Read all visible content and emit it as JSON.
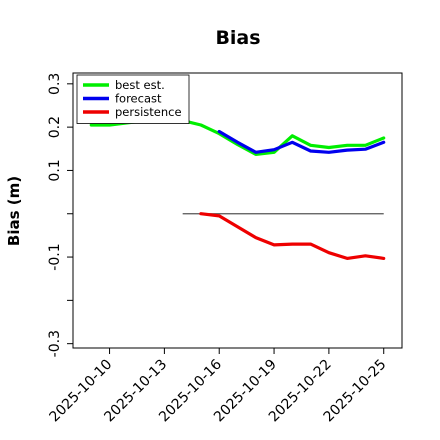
{
  "chart_data": {
    "type": "line",
    "title": "Bias",
    "xlabel": "",
    "ylabel": "Bias (m)",
    "ylim": [
      -0.3,
      0.3
    ],
    "xlim": [
      "2025-10-08",
      "2025-10-26"
    ],
    "x_tick_labels": [
      "2025-10-10",
      "2025-10-13",
      "2025-10-16",
      "2025-10-19",
      "2025-10-22",
      "2025-10-25"
    ],
    "highlighted_x_tick": "2025-10-16",
    "highlight_color": "#228b22",
    "y_ticks": [
      -0.3,
      -0.2,
      -0.1,
      0.0,
      0.1,
      0.2,
      0.3
    ],
    "y_tick_labels": [
      "-0.3",
      "",
      "-0.1",
      "",
      "0.1",
      "0.2",
      "0.3"
    ],
    "grid": false,
    "legend_position": "top-left",
    "series": [
      {
        "name": "best est.",
        "color": "#00ee00",
        "x": [
          "2025-10-09",
          "2025-10-10",
          "2025-10-11",
          "2025-10-12",
          "2025-10-13",
          "2025-10-14",
          "2025-10-15",
          "2025-10-16",
          "2025-10-17",
          "2025-10-18",
          "2025-10-19",
          "2025-10-20",
          "2025-10-21",
          "2025-10-22",
          "2025-10-23",
          "2025-10-24",
          "2025-10-25"
        ],
        "values": [
          0.205,
          0.205,
          0.21,
          0.215,
          0.215,
          0.215,
          0.205,
          0.185,
          0.16,
          0.137,
          0.142,
          0.18,
          0.158,
          0.153,
          0.158,
          0.158,
          0.175
        ]
      },
      {
        "name": "forecast",
        "color": "#0000ee",
        "x": [
          "2025-10-16",
          "2025-10-17",
          "2025-10-18",
          "2025-10-19",
          "2025-10-20",
          "2025-10-21",
          "2025-10-22",
          "2025-10-23",
          "2025-10-24",
          "2025-10-25"
        ],
        "values": [
          0.19,
          0.165,
          0.142,
          0.148,
          0.165,
          0.145,
          0.142,
          0.147,
          0.149,
          0.165
        ]
      },
      {
        "name": "persistence",
        "color": "#ee0000",
        "x": [
          "2025-10-15",
          "2025-10-16",
          "2025-10-17",
          "2025-10-18",
          "2025-10-19",
          "2025-10-20",
          "2025-10-21",
          "2025-10-22",
          "2025-10-23",
          "2025-10-24",
          "2025-10-25"
        ],
        "values": [
          0.0,
          -0.005,
          -0.03,
          -0.055,
          -0.072,
          -0.07,
          -0.07,
          -0.09,
          -0.103,
          -0.097,
          -0.103
        ]
      }
    ],
    "reference_line": {
      "y": 0.0,
      "x_start": "2025-10-14",
      "x_end": "2025-10-25",
      "color": "#555555"
    }
  }
}
